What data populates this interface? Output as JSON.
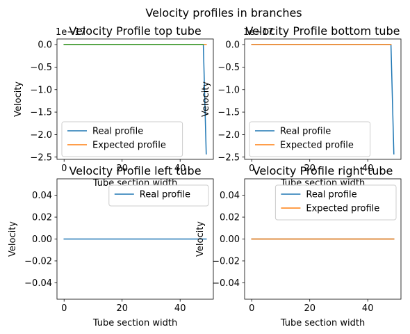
{
  "figure": {
    "suptitle": "Velocity profiles in branches"
  },
  "chart_data": [
    {
      "type": "line",
      "title": "Velocity Profile top tube",
      "xlabel": "Tube section width",
      "ylabel": "Velocity",
      "xlim": [
        -2.45,
        51.45
      ],
      "ylim": [
        -2.55,
        0.125
      ],
      "y_offset_text": "1e−17",
      "xticks": [
        0,
        20,
        40
      ],
      "yticks": [
        0.0,
        -0.5,
        -1.0,
        -1.5,
        -2.0,
        -2.5
      ],
      "ytick_labels": [
        "0.0",
        "−0.5",
        "−1.0",
        "−1.5",
        "−2.0",
        "−2.5"
      ],
      "legend_position": "lower left",
      "series": [
        {
          "name": "Real profile",
          "color": "#1f77b4",
          "x": [
            0,
            48,
            49
          ],
          "y": [
            0,
            0,
            -2.43
          ]
        },
        {
          "name": "Expected profile",
          "color": "#ff7f0e",
          "x": [
            0,
            49
          ],
          "y": [
            0,
            0
          ]
        },
        {
          "color": "#2ca02c",
          "x": [
            0,
            48
          ],
          "y": [
            0,
            0
          ]
        }
      ]
    },
    {
      "type": "line",
      "title": "Velocity Profile bottom tube",
      "xlabel": "Tube section width",
      "ylabel": "Velocity",
      "xlim": [
        -2.45,
        51.45
      ],
      "ylim": [
        -2.55,
        0.125
      ],
      "y_offset_text": "1e−17",
      "xticks": [
        0,
        20,
        40
      ],
      "yticks": [
        0.0,
        -0.5,
        -1.0,
        -1.5,
        -2.0,
        -2.5
      ],
      "ytick_labels": [
        "0.0",
        "−0.5",
        "−1.0",
        "−1.5",
        "−2.0",
        "−2.5"
      ],
      "legend_position": "lower left",
      "series": [
        {
          "name": "Real profile",
          "color": "#1f77b4",
          "x": [
            0,
            48,
            49
          ],
          "y": [
            0,
            0,
            -2.43
          ]
        },
        {
          "name": "Expected profile",
          "color": "#ff7f0e",
          "x": [
            0,
            48
          ],
          "y": [
            0,
            0
          ]
        }
      ]
    },
    {
      "type": "line",
      "title": "Velocity Profile left tube",
      "xlabel": "Tube section width",
      "ylabel": "Velocity",
      "xlim": [
        -2.45,
        51.45
      ],
      "ylim": [
        -0.055,
        0.055
      ],
      "xticks": [
        0,
        20,
        40
      ],
      "yticks": [
        0.04,
        0.02,
        0.0,
        -0.02,
        -0.04
      ],
      "ytick_labels": [
        "0.04",
        "0.02",
        "0.00",
        "−0.02",
        "−0.04"
      ],
      "legend_position": "upper right",
      "series": [
        {
          "name": "Real profile",
          "color": "#1f77b4",
          "x": [
            0,
            49
          ],
          "y": [
            0,
            0
          ]
        }
      ]
    },
    {
      "type": "line",
      "title": "Velocity Profile right tube",
      "xlabel": "Tube section width",
      "ylabel": "Velocity",
      "xlim": [
        -2.45,
        51.45
      ],
      "ylim": [
        -0.055,
        0.055
      ],
      "xticks": [
        0,
        20,
        40
      ],
      "yticks": [
        0.04,
        0.02,
        0.0,
        -0.02,
        -0.04
      ],
      "ytick_labels": [
        "0.04",
        "0.02",
        "0.00",
        "−0.02",
        "−0.04"
      ],
      "legend_position": "upper right",
      "series": [
        {
          "name": "Real profile",
          "color": "#1f77b4",
          "x": [
            0,
            49
          ],
          "y": [
            0,
            0
          ]
        },
        {
          "name": "Expected profile",
          "color": "#ff7f0e",
          "x": [
            0,
            49
          ],
          "y": [
            0,
            0
          ]
        }
      ]
    }
  ]
}
